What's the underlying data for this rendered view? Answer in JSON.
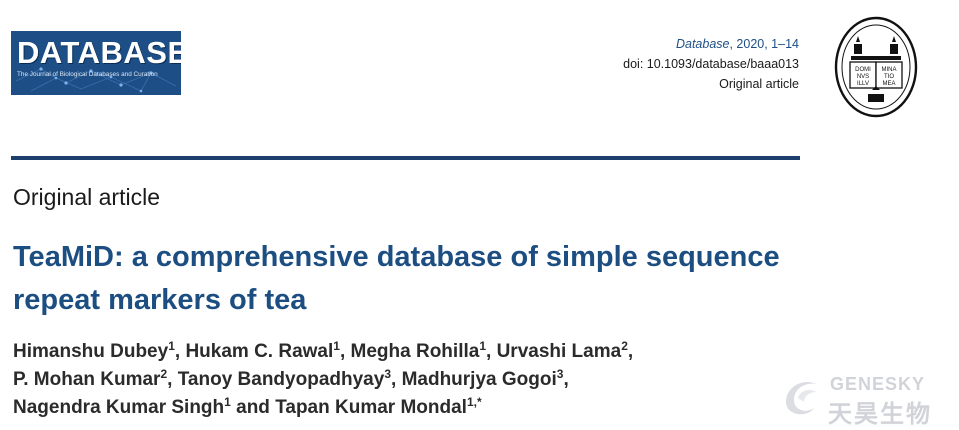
{
  "banner": {
    "title": "DATABASE",
    "subtitle": "The Journal of Biological Databases and Curation"
  },
  "meta": {
    "journal": "Database",
    "year_pages": ", 2020, 1–14",
    "doi": "doi: 10.1093/database/baaa013",
    "type": "Original article"
  },
  "seal": {
    "motto": [
      "DOMI",
      "NVS",
      "ILLV",
      "MINA",
      "TIO",
      "MEA"
    ]
  },
  "section_label": "Original article",
  "title": "TeaMiD: a comprehensive database of simple sequence repeat markers of tea",
  "authors": [
    {
      "name": "Himanshu Dubey",
      "aff": "1",
      "sep": ", "
    },
    {
      "name": "Hukam C. Rawal",
      "aff": "1",
      "sep": ", "
    },
    {
      "name": "Megha Rohilla",
      "aff": "1",
      "sep": ", "
    },
    {
      "name": "Urvashi Lama",
      "aff": "2",
      "sep": ","
    },
    {
      "name": "P. Mohan Kumar",
      "aff": "2",
      "sep": ", "
    },
    {
      "name": "Tanoy Bandyopadhyay",
      "aff": "3",
      "sep": ", "
    },
    {
      "name": "Madhurjya Gogoi",
      "aff": "3",
      "sep": ","
    },
    {
      "name": "Nagendra Kumar Singh",
      "aff": "1",
      "sep": " and "
    },
    {
      "name": "Tapan Kumar Mondal",
      "aff": "1,*",
      "sep": ""
    }
  ],
  "watermark": {
    "en": "GENESKY",
    "cn": "天昊生物"
  },
  "colors": {
    "banner": "#1d4e86",
    "title": "#1c4e82",
    "rule": "#1d3f6c"
  }
}
